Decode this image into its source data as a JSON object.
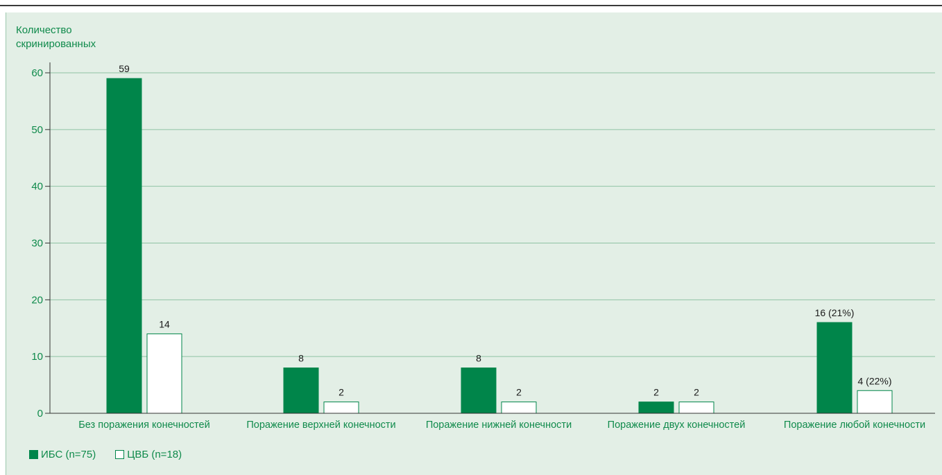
{
  "chart_data": {
    "type": "bar",
    "title": "",
    "xlabel": "",
    "ylabel": "Количество\nскринированных",
    "ylim": [
      0,
      60
    ],
    "yticks": [
      0,
      10,
      20,
      30,
      40,
      50,
      60
    ],
    "grid": true,
    "legend_position": "bottom-left",
    "categories": [
      "Без поражения конечностей",
      "Поражение верхней конечности",
      "Поражение нижней конечности",
      "Поражение двух конечностей",
      "Поражение любой конечности"
    ],
    "series": [
      {
        "name": "ИБС (n=75)",
        "color": "#00854a",
        "fill": "solid",
        "values": [
          59,
          8,
          8,
          2,
          16
        ],
        "labels": [
          "59",
          "8",
          "8",
          "2",
          "16 (21%)"
        ]
      },
      {
        "name": "ЦВБ (n=18)",
        "color": "#ffffff",
        "fill": "outline",
        "values": [
          14,
          2,
          2,
          2,
          4
        ],
        "labels": [
          "14",
          "2",
          "2",
          "2",
          "4 (22%)"
        ]
      }
    ]
  }
}
